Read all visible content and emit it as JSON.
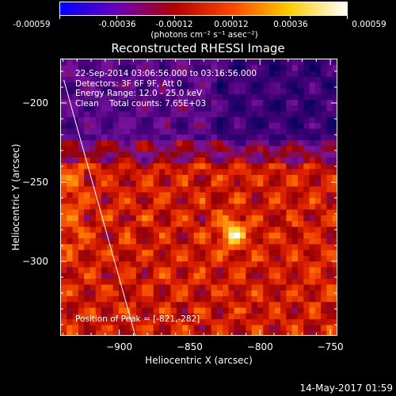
{
  "colorbar": {
    "ticks": [
      "-0.00059",
      "-0.00036",
      "-0.00012",
      "0.00012",
      "0.00036",
      "0.00059"
    ],
    "units": "(photons cm⁻² s⁻¹ asec⁻²)",
    "colors": [
      "#0000ff",
      "#6a00b8",
      "#b00000",
      "#ff4500",
      "#ffcc00",
      "#ffffff"
    ]
  },
  "chart_data": {
    "type": "heatmap",
    "title": "Reconstructed RHESSI Image",
    "xlabel": "Heliocentric X (arcsec)",
    "ylabel": "Heliocentric Y (arcsec)",
    "xlim": [
      -942,
      -745
    ],
    "ylim": [
      -347,
      -172
    ],
    "xticks": [
      -900,
      -850,
      -800,
      -750
    ],
    "yticks": [
      -200,
      -250,
      -300
    ],
    "xtick_labels": [
      "−900",
      "−850",
      "−800",
      "−750"
    ],
    "ytick_labels": [
      "−200",
      "−250",
      "−300"
    ],
    "value_range": [
      -0.00059,
      0.00059
    ],
    "peak": {
      "x": -821,
      "y": -282
    },
    "limb_line": [
      [
        -940,
        -185
      ],
      [
        -889,
        -347
      ]
    ],
    "info": {
      "line1": "22-Sep-2014 03:06:56.000 to 03:16:56.000",
      "line2": "Detectors: 3F 6F 9F, Att 0",
      "line3": "Energy Range: 12.0 - 25.0 keV",
      "line4": "Clean    Total counts: 7.65E+03"
    },
    "peak_label": "Position of Peak = [-821,-282]"
  },
  "timestamp": "14-May-2017 01:59"
}
